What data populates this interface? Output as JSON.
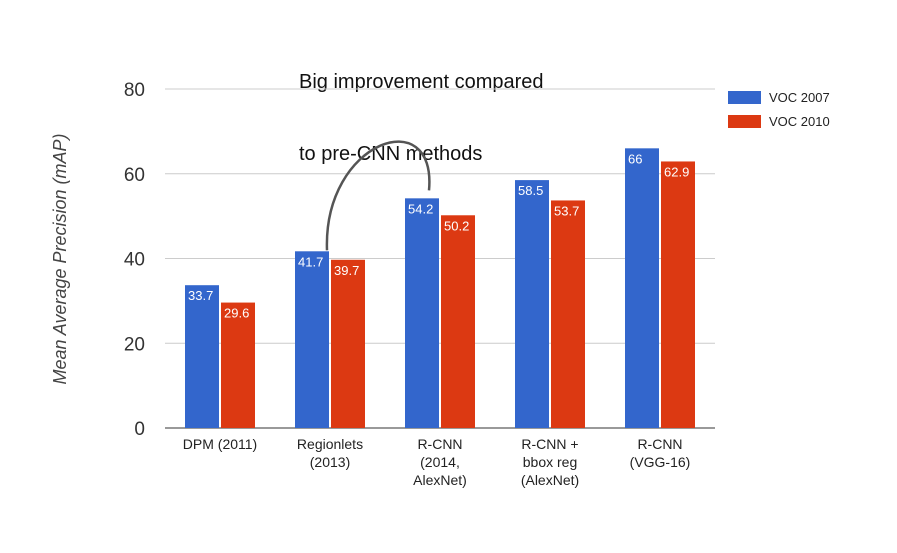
{
  "annotation": {
    "line1": "Big improvement compared",
    "line2": "to pre-CNN methods"
  },
  "chart_data": {
    "type": "bar",
    "ylabel": "Mean Average Precision (mAP)",
    "xlabel": "",
    "ylim": [
      0,
      80
    ],
    "yticks": [
      0,
      20,
      40,
      60,
      80
    ],
    "grid": true,
    "legend_position": "top-right",
    "categories": [
      [
        "DPM (2011)"
      ],
      [
        "Regionlets",
        "(2013)"
      ],
      [
        "R-CNN",
        "(2014,",
        "AlexNet)"
      ],
      [
        "R-CNN +",
        "bbox reg",
        "(AlexNet)"
      ],
      [
        "R-CNN",
        "(VGG-16)"
      ]
    ],
    "series": [
      {
        "name": "VOC 2007",
        "color": "#3366cc",
        "values": [
          33.7,
          41.7,
          54.2,
          58.5,
          66
        ]
      },
      {
        "name": "VOC 2010",
        "color": "#dc3912",
        "values": [
          29.6,
          39.7,
          50.2,
          53.7,
          62.9
        ]
      }
    ],
    "annotation_arc": {
      "from_category": 1,
      "to_category": 2
    }
  }
}
